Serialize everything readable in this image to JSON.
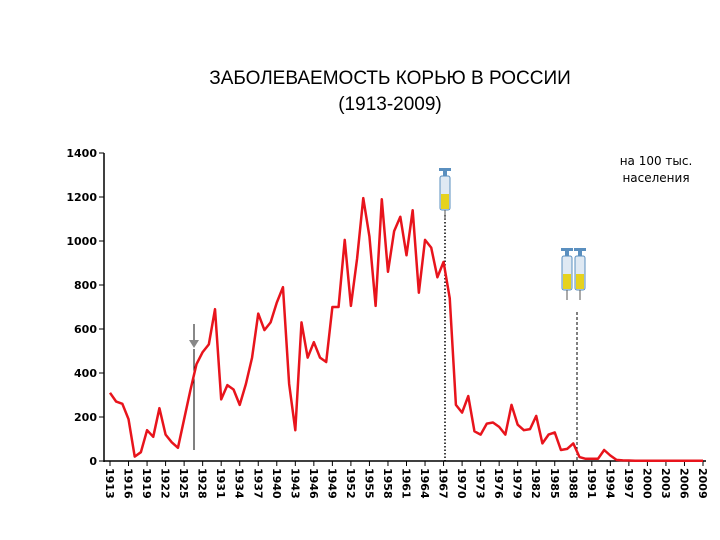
{
  "chart_data": {
    "type": "line",
    "title": "ЗАБОЛЕВАЕМОСТЬ КОРЬЮ В РОССИИ",
    "subtitle": "(1913-2009)",
    "annotation": [
      "на 100 тыс.",
      "населения"
    ],
    "x": [
      1913,
      1914,
      1915,
      1916,
      1917,
      1918,
      1919,
      1920,
      1921,
      1922,
      1923,
      1924,
      1925,
      1926,
      1927,
      1928,
      1929,
      1930,
      1931,
      1932,
      1933,
      1934,
      1935,
      1936,
      1937,
      1938,
      1939,
      1940,
      1941,
      1942,
      1943,
      1944,
      1945,
      1946,
      1947,
      1948,
      1949,
      1950,
      1951,
      1952,
      1953,
      1954,
      1955,
      1956,
      1957,
      1958,
      1959,
      1960,
      1961,
      1962,
      1963,
      1964,
      1965,
      1966,
      1967,
      1968,
      1969,
      1970,
      1971,
      1972,
      1973,
      1974,
      1975,
      1976,
      1977,
      1978,
      1979,
      1980,
      1981,
      1982,
      1983,
      1984,
      1985,
      1986,
      1987,
      1988,
      1989,
      1990,
      1991,
      1992,
      1993,
      1994,
      1995,
      1996,
      1997,
      1998,
      1999,
      2000,
      2001,
      2002,
      2003,
      2004,
      2005,
      2006,
      2007,
      2008,
      2009
    ],
    "series": [
      {
        "name": "Заболеваемость",
        "color": "#e8141c",
        "values": [
          310,
          270,
          260,
          190,
          20,
          40,
          140,
          110,
          240,
          120,
          85,
          60,
          190,
          320,
          440,
          495,
          530,
          690,
          280,
          345,
          325,
          255,
          350,
          470,
          670,
          595,
          630,
          720,
          790,
          350,
          140,
          630,
          470,
          540,
          470,
          450,
          700,
          700,
          1005,
          705,
          920,
          1195,
          1020,
          705,
          1190,
          860,
          1045,
          1110,
          935,
          1140,
          765,
          1005,
          970,
          835,
          905,
          740,
          255,
          220,
          295,
          135,
          120,
          170,
          175,
          155,
          120,
          255,
          165,
          140,
          145,
          205,
          80,
          120,
          130,
          50,
          55,
          80,
          18,
          10,
          10,
          10,
          50,
          25,
          5,
          3,
          2,
          1,
          1,
          1,
          1,
          1,
          1,
          1,
          1,
          1,
          1,
          1,
          1
        ]
      }
    ],
    "xlim": [
      1913,
      2009
    ],
    "xticks": [
      1913,
      1916,
      1919,
      1922,
      1925,
      1928,
      1931,
      1934,
      1937,
      1940,
      1943,
      1946,
      1949,
      1952,
      1955,
      1958,
      1961,
      1964,
      1967,
      1970,
      1973,
      1976,
      1979,
      1982,
      1985,
      1988,
      1991,
      1994,
      1997,
      2000,
      2003,
      2006,
      2009
    ],
    "ylim": [
      0,
      1400
    ],
    "yticks": [
      0,
      200,
      400,
      600,
      800,
      1000,
      1200,
      1400
    ]
  }
}
